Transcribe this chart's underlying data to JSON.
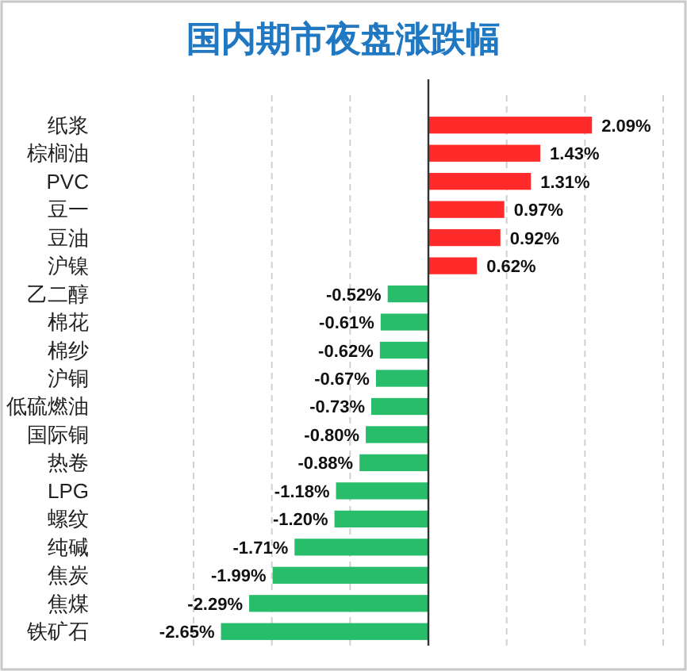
{
  "chart_data": {
    "type": "bar",
    "orientation": "horizontal",
    "title": "国内期市夜盘涨跌幅",
    "categories": [
      "纸浆",
      "棕榈油",
      "PVC",
      "豆一",
      "豆油",
      "沪镍",
      "乙二醇",
      "棉花",
      "棉纱",
      "沪铜",
      "低硫燃油",
      "国际铜",
      "热卷",
      "LPG",
      "螺纹",
      "纯碱",
      "焦炭",
      "焦煤",
      "铁矿石"
    ],
    "values": [
      2.09,
      1.43,
      1.31,
      0.97,
      0.92,
      0.62,
      -0.52,
      -0.61,
      -0.62,
      -0.67,
      -0.73,
      -0.8,
      -0.88,
      -1.18,
      -1.2,
      -1.71,
      -1.99,
      -2.29,
      -2.65
    ],
    "colors": [
      "#ff2a2a",
      "#ff2a2a",
      "#ff2a2a",
      "#ff2a2a",
      "#ff2a2a",
      "#ff2a2a",
      "#27bd6a",
      "#27bd6a",
      "#27bd6a",
      "#27bd6a",
      "#27bd6a",
      "#27bd6a",
      "#27bd6a",
      "#27bd6a",
      "#27bd6a",
      "#27bd6a",
      "#27bd6a",
      "#27bd6a",
      "#27bd6a"
    ],
    "value_labels": [
      "2.09%",
      "1.43%",
      "1.31%",
      "0.97%",
      "0.92%",
      "0.62%",
      "-0.52%",
      "-0.61%",
      "-0.62%",
      "-0.67%",
      "-0.73%",
      "-0.80%",
      "-0.88%",
      "-1.18%",
      "-1.20%",
      "-1.71%",
      "-1.99%",
      "-2.29%",
      "-2.65%"
    ],
    "xlim": [
      -3,
      3
    ],
    "xticks": [
      {
        "value": -3,
        "label": null
      },
      {
        "value": -2,
        "label": null
      },
      {
        "value": -1,
        "label": null
      },
      {
        "value": 0,
        "label": null
      },
      {
        "value": 1,
        "label": null
      },
      {
        "value": 2,
        "label": null
      },
      {
        "value": 3,
        "label": null
      }
    ],
    "grid": "x"
  }
}
